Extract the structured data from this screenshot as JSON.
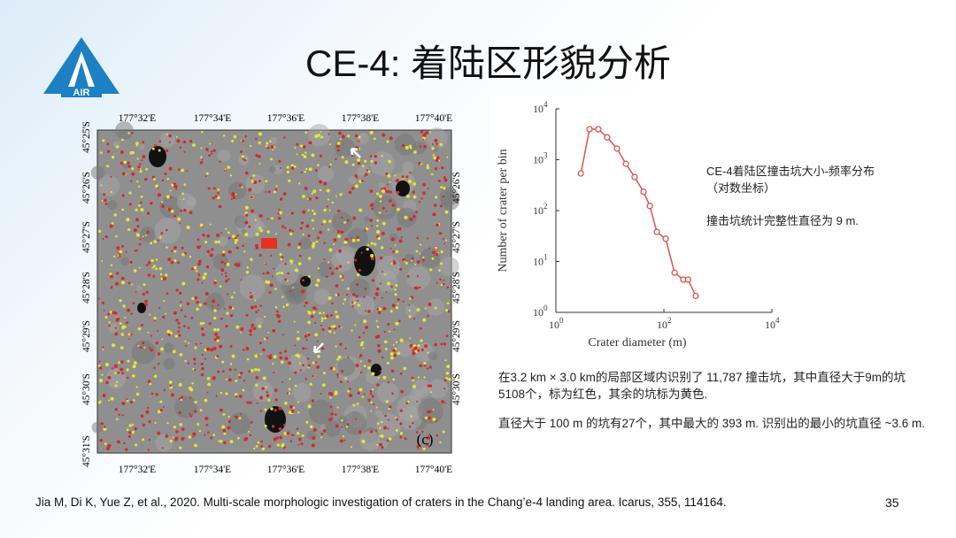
{
  "logo": {
    "text": "AIR"
  },
  "header": {
    "title": "CE-4: 着陆区形貌分析"
  },
  "map": {
    "panel_label": "(c)",
    "longitudes": [
      "177°32'E",
      "177°34'E",
      "177°36'E",
      "177°38'E",
      "177°40'E"
    ],
    "latitudes": [
      "45°25'S",
      "45°26'S",
      "45°27'S",
      "45°28'S",
      "45°29'S",
      "45°30'S",
      "45°31'S"
    ]
  },
  "chart_data": {
    "type": "line",
    "xlabel": "Crater diameter (m)",
    "ylabel": "Number of crater per bin",
    "xlog": true,
    "ylog": true,
    "xlim": [
      1,
      10000
    ],
    "ylim": [
      1,
      10000
    ],
    "xticks": [
      {
        "value": 1,
        "label": "10^0"
      },
      {
        "value": 100,
        "label": "10^2"
      },
      {
        "value": 10000,
        "label": "10^4"
      }
    ],
    "yticks": [
      {
        "value": 1,
        "label": "10^0"
      },
      {
        "value": 10,
        "label": "10^1"
      },
      {
        "value": 100,
        "label": "10^2"
      },
      {
        "value": 1000,
        "label": "10^3"
      },
      {
        "value": 10000,
        "label": "10^4"
      }
    ],
    "x": [
      2.9,
      4.2,
      6.1,
      8.9,
      13.5,
      19.8,
      28.7,
      42,
      55,
      74,
      108,
      158,
      229,
      280,
      390
    ],
    "series": [
      {
        "color": "#d9534f",
        "values": [
          537,
          3981,
          3981,
          2754,
          1660,
          832,
          457,
          234,
          123,
          38,
          28,
          6,
          4.4,
          4.4,
          2.1
        ]
      }
    ],
    "annotations": [
      "CE-4着陆区撞击坑大小-频率分布",
      "（对数坐标）",
      "撞击坑统计完整性直径为 9 m."
    ]
  },
  "body": {
    "paragraphs": [
      "在3.2 km × 3.0 km的局部区域内识别了 11,787 撞击坑，其中直径大于9m的坑 5108个，标为红色，其余的坑标为黄色.",
      "直径大于 100 m 的坑有27个，其中最大的 393 m. 识别出的最小的坑直径 ~3.6 m."
    ]
  },
  "footer": {
    "citation": "Jia M, Di K, Yue Z, et al., 2020. Multi-scale morphologic investigation of craters in the Chang’e-4 landing area. Icarus, 355, 114164.",
    "page_number": "35"
  }
}
